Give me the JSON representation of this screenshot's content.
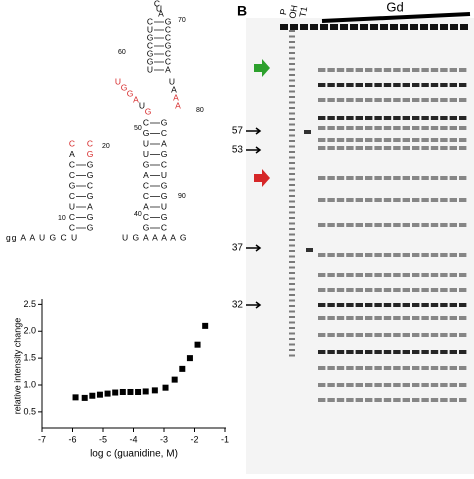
{
  "chart_data": {
    "type": "scatter",
    "y_label": "relative intensity change",
    "x_label": "log c (guanidine, M)",
    "x": [
      -5.9,
      -5.6,
      -5.35,
      -5.1,
      -4.85,
      -4.6,
      -4.35,
      -4.1,
      -3.85,
      -3.6,
      -3.3,
      -2.95,
      -2.65,
      -2.4,
      -2.15,
      -1.9,
      -1.65
    ],
    "values": [
      0.77,
      0.76,
      0.8,
      0.82,
      0.84,
      0.86,
      0.87,
      0.87,
      0.87,
      0.88,
      0.9,
      0.95,
      1.1,
      1.3,
      1.5,
      1.75,
      2.1
    ],
    "color": "#000000",
    "xlim": [
      -7,
      -1
    ],
    "xticks": [
      -7,
      -6,
      -5,
      -4,
      -3,
      -2,
      -1
    ],
    "ylim": [
      0.2,
      2.6
    ],
    "yticks": [
      {
        "value": 0.5,
        "label": "0.5"
      },
      {
        "value": 1,
        "label": "1.0"
      },
      {
        "value": 1.5,
        "label": "1.5"
      },
      {
        "value": 2,
        "label": "2.0"
      },
      {
        "value": 2.5,
        "label": "2.5"
      }
    ]
  },
  "rna": {
    "tail5": "gg A A U G C U",
    "tail3": "U G A A A A G",
    "left_hairpin": [
      [
        {
          "t": "C",
          "c": "#d62728"
        },
        {
          "t": "C",
          "c": "#d62728"
        }
      ],
      [
        "A",
        {
          "t": "G",
          "c": "#d62728"
        }
      ],
      [
        "C",
        "G"
      ],
      [
        "C",
        "G"
      ],
      [
        "G",
        "C"
      ],
      [
        "C",
        "G"
      ],
      [
        "U",
        "A"
      ],
      [
        "C",
        "G"
      ],
      [
        "C",
        "G"
      ]
    ],
    "lower_stem": [
      [
        "C",
        "G"
      ],
      [
        "G",
        "C"
      ],
      [
        "U",
        "A"
      ],
      [
        "U",
        "G"
      ],
      [
        "G",
        "C"
      ],
      [
        "A",
        "U"
      ],
      [
        "C",
        "G"
      ],
      [
        "C",
        "G"
      ],
      [
        "A",
        "U"
      ],
      [
        "C",
        "G"
      ],
      [
        "G",
        "C"
      ]
    ],
    "loop_left": [
      {
        "t": "U",
        "c": "#d62728"
      },
      {
        "t": "G",
        "c": "#d62728"
      },
      {
        "t": "G",
        "c": "#d62728"
      },
      {
        "t": "A",
        "c": "#d62728"
      },
      "U",
      {
        "t": "G",
        "c": "#d62728"
      }
    ],
    "loop_right": [
      "U",
      "A",
      {
        "t": "A",
        "c": "#d62728"
      },
      {
        "t": "A",
        "c": "#d62728"
      }
    ],
    "upper_stem": [
      [
        "C",
        "G"
      ],
      [
        "U",
        "C"
      ],
      [
        "G",
        "C"
      ],
      [
        "C",
        "G"
      ],
      [
        "G",
        "C"
      ],
      [
        "G",
        "C"
      ],
      [
        "U",
        "A"
      ]
    ],
    "upper_loop": [
      "C",
      "U",
      "A"
    ],
    "numbers": [
      "10",
      "20",
      "40",
      "50",
      "60",
      "70",
      "80",
      "90"
    ]
  },
  "gel": {
    "panel": "B",
    "lanes": [
      "P",
      "OH",
      "T1"
    ],
    "group": "Gd",
    "markers": [
      "57",
      "53",
      "37",
      "32"
    ]
  }
}
